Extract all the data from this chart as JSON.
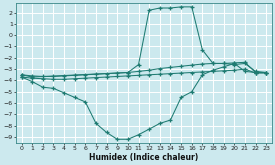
{
  "background_color": "#cce9ee",
  "grid_color": "#b0d8df",
  "line_color": "#1e7b72",
  "xlabel": "Humidex (Indice chaleur)",
  "xlim": [
    -0.5,
    23.5
  ],
  "ylim": [
    -9.5,
    2.8
  ],
  "yticks": [
    2,
    1,
    0,
    -1,
    -2,
    -3,
    -4,
    -5,
    -6,
    -7,
    -8,
    -9
  ],
  "xticks": [
    0,
    1,
    2,
    3,
    4,
    5,
    6,
    7,
    8,
    9,
    10,
    11,
    12,
    13,
    14,
    15,
    16,
    17,
    18,
    19,
    20,
    21,
    22,
    23
  ],
  "curves": [
    {
      "x": [
        0,
        1,
        10,
        11,
        12,
        13,
        14,
        15,
        16,
        17,
        18,
        19,
        20,
        21,
        22,
        23
      ],
      "y": [
        -3.5,
        -3.7,
        -3.3,
        -2.6,
        2.2,
        2.4,
        2.4,
        2.5,
        2.5,
        -1.3,
        -2.5,
        -2.5,
        -2.6,
        -2.5,
        -3.2,
        -3.3
      ]
    },
    {
      "x": [
        0,
        1,
        2,
        3,
        4,
        5,
        6,
        7,
        8,
        9,
        10,
        11,
        12,
        13,
        14,
        15,
        16,
        17,
        18,
        19,
        20,
        21,
        22,
        23
      ],
      "y": [
        -3.5,
        -3.6,
        -3.65,
        -3.65,
        -3.6,
        -3.55,
        -3.5,
        -3.45,
        -3.4,
        -3.35,
        -3.3,
        -3.2,
        -3.1,
        -2.95,
        -2.85,
        -2.75,
        -2.65,
        -2.55,
        -2.5,
        -2.5,
        -2.45,
        -2.4,
        -3.3,
        -3.3
      ]
    },
    {
      "x": [
        0,
        1,
        2,
        3,
        4,
        5,
        6,
        7,
        8,
        9,
        10,
        11,
        12,
        13,
        14,
        15,
        16,
        17,
        18,
        19,
        20,
        21,
        22,
        23
      ],
      "y": [
        -3.7,
        -3.8,
        -3.85,
        -3.9,
        -3.9,
        -3.85,
        -3.8,
        -3.75,
        -3.7,
        -3.65,
        -3.6,
        -3.55,
        -3.5,
        -3.45,
        -3.4,
        -3.35,
        -3.3,
        -3.25,
        -3.2,
        -3.15,
        -3.1,
        -3.0,
        -3.35,
        -3.35
      ]
    },
    {
      "x": [
        0,
        1,
        2,
        3,
        4,
        5,
        6,
        7,
        8,
        9,
        10,
        11,
        12,
        13,
        14,
        15,
        16,
        17,
        18,
        19,
        20,
        21,
        22,
        23
      ],
      "y": [
        -3.7,
        -4.1,
        -4.6,
        -4.7,
        -5.1,
        -5.5,
        -5.9,
        -7.8,
        -8.6,
        -9.2,
        -9.2,
        -8.8,
        -8.3,
        -7.8,
        -7.5,
        -5.5,
        -5.0,
        -3.5,
        -3.1,
        -2.8,
        -2.5,
        -3.2,
        -3.3,
        -3.3
      ]
    }
  ]
}
